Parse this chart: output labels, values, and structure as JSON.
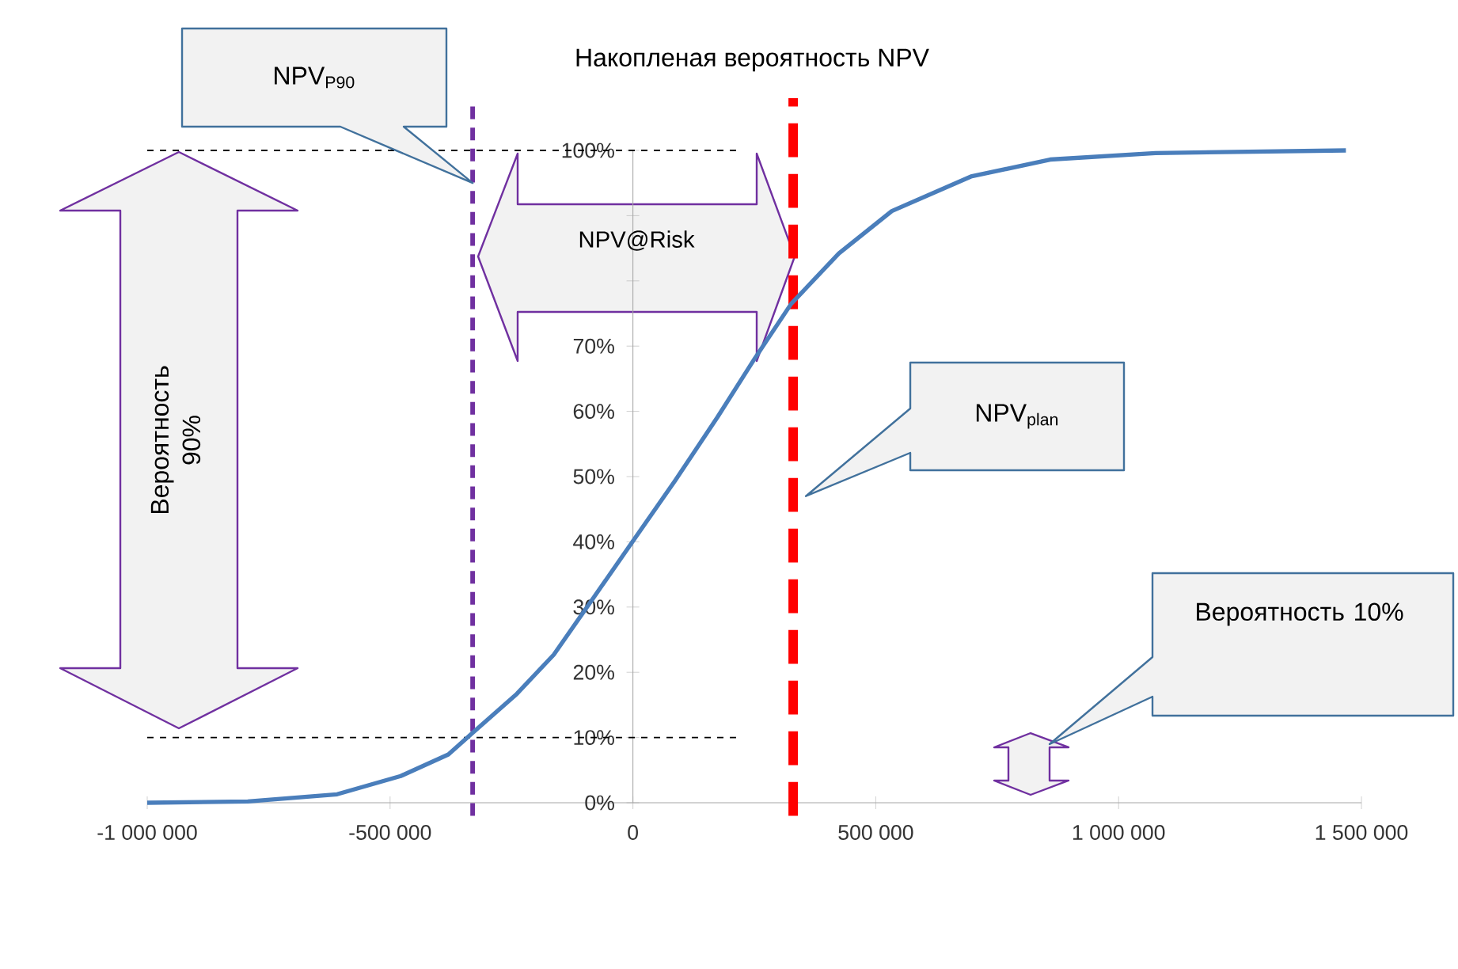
{
  "chart_data": {
    "type": "line",
    "title": "Накопленая вероятность  NPV",
    "x": [
      -1000000,
      -793000,
      -609000,
      -478000,
      -380000,
      -332000,
      -239000,
      -163000,
      -87000,
      0,
      87000,
      174000,
      250000,
      326000,
      424000,
      533000,
      696000,
      859000,
      1076000,
      1468000
    ],
    "values": [
      0,
      0.2,
      1.3,
      4.1,
      7.4,
      10.6,
      16.7,
      22.7,
      30.8,
      40.1,
      49.4,
      59.1,
      68,
      76.5,
      84.2,
      90.7,
      96,
      98.6,
      99.6,
      100
    ],
    "color": "#4a7ebb",
    "xlim": [
      -1000000,
      1500000
    ],
    "ylim": [
      0,
      100
    ],
    "xticks": [
      {
        "value": -1000000,
        "label": "-1 000 000"
      },
      {
        "value": -500000,
        "label": "-500 000"
      },
      0,
      {
        "value": 500000,
        "label": "500 000"
      },
      {
        "value": 1000000,
        "label": "1 000 000"
      },
      {
        "value": 1500000,
        "label": "1 500 000"
      }
    ],
    "yticks": [
      {
        "value": 0,
        "label": "0%"
      },
      {
        "value": 10,
        "label": "10%"
      },
      {
        "value": 20,
        "label": "20%"
      },
      {
        "value": 30,
        "label": "30%"
      },
      {
        "value": 40,
        "label": "40%"
      },
      {
        "value": 50,
        "label": "50%"
      },
      {
        "value": 60,
        "label": "60%"
      },
      {
        "value": 70,
        "label": "70%"
      },
      {
        "value": 80,
        "label": null
      },
      {
        "value": 90,
        "label": null
      },
      {
        "value": 100,
        "label": "100%"
      }
    ],
    "ref_lines": [
      {
        "axis": "x",
        "value": -330000,
        "color": "#7030a0",
        "line_style": "dashed"
      },
      {
        "axis": "x",
        "value": 330000,
        "color": "#ff0000",
        "line_style": "dashed"
      },
      {
        "axis": "y",
        "value": 100,
        "color": "#000000",
        "line_style": "dashed"
      },
      {
        "axis": "y",
        "value": 10,
        "color": "#000000",
        "line_style": "dashed"
      }
    ],
    "annotations": [
      "NPV$_{P90}$",
      "NPV$_{plan}$",
      "NPV@Risk",
      "Вероятность 90%",
      "Вероятность 10%"
    ]
  }
}
